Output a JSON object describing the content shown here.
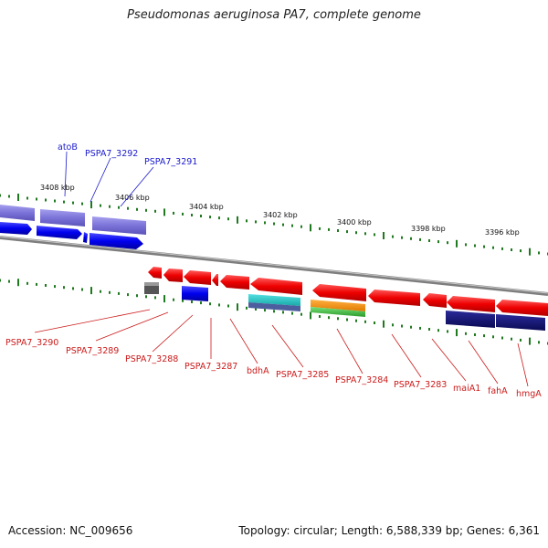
{
  "title": "Pseudomonas aeruginosa PA7, complete genome",
  "footer": {
    "accession": "Accession: NC_009656",
    "topology": "Topology: circular; Length: 6,588,339 bp; Genes: 6,361"
  },
  "colors": {
    "backbone": "#8a8a8a",
    "tick": "#1f7a1f",
    "forward_label": "#1a1acc",
    "reverse_label": "#cc1a1a"
  },
  "ticks": [
    "3408 kbp",
    "3406 kbp",
    "3404 kbp",
    "3402 kbp",
    "3400 kbp",
    "3398 kbp",
    "3396 kbp"
  ],
  "genes_forward": [
    "atoB",
    "PSPA7_3292",
    "PSPA7_3291"
  ],
  "genes_reverse": [
    "PSPA7_3290",
    "PSPA7_3289",
    "PSPA7_3288",
    "PSPA7_3287",
    "bdhA",
    "PSPA7_3285",
    "PSPA7_3284",
    "PSPA7_3283",
    "maiA1",
    "fahA",
    "hmgA"
  ]
}
